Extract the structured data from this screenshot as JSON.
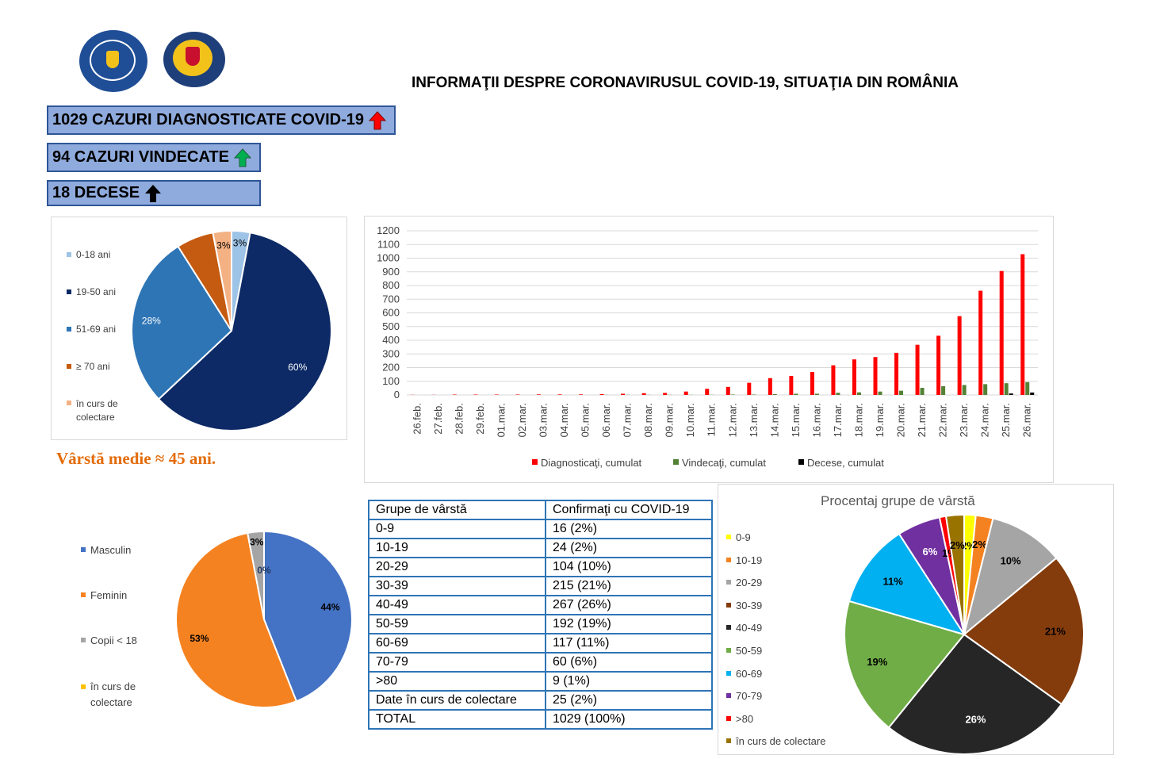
{
  "header": {
    "title": "INFORMAŢII DESPRE CORONAVIRUSUL COVID-19, SITUAŢIA DIN ROMÂNIA"
  },
  "stats": [
    {
      "text": "1029 CAZURI DIAGNOSTICATE COVID-19",
      "arrow_color": "#ff0000"
    },
    {
      "text": "94 CAZURI VINDECATE",
      "arrow_color": "#00b050"
    },
    {
      "text": "18 DECESE",
      "arrow_color": "#000000"
    }
  ],
  "average_age": "Vârstă medie ≈ 45 ani.",
  "table": {
    "headers": [
      "Grupe de vârstă",
      "Confirmaţi cu COVID-19"
    ],
    "rows": [
      [
        "0-9",
        "16 (2%)"
      ],
      [
        "10-19",
        "24 (2%)"
      ],
      [
        "20-29",
        "104 (10%)"
      ],
      [
        "30-39",
        "215 (21%)"
      ],
      [
        "40-49",
        "267 (26%)"
      ],
      [
        "50-59",
        "192 (19%)"
      ],
      [
        "60-69",
        "117 (11%)"
      ],
      [
        "70-79",
        "60 (6%)"
      ],
      [
        ">80",
        "9 (1%)"
      ],
      [
        "Date în curs de colectare",
        "25 (2%)"
      ],
      [
        "TOTAL",
        "1029 (100%)"
      ]
    ]
  },
  "chart_data": [
    {
      "type": "pie",
      "title": "",
      "labels": [
        "0-18 ani",
        "19-50 ani",
        "51-69 ani",
        "≥ 70 ani",
        "în curs de colectare"
      ],
      "values": [
        3,
        60,
        28,
        6,
        3
      ],
      "data_labels": [
        "3%",
        "60%",
        "28%",
        "6%",
        "3%"
      ],
      "colors": [
        "#9dc3e6",
        "#0d2a66",
        "#2e75b6",
        "#c55a11",
        "#f4b183"
      ],
      "label_colors": [
        "#000000",
        "#ffffff",
        "#ffffff",
        "#c55a11",
        "#000000"
      ],
      "legend_position": "left"
    },
    {
      "type": "bar",
      "title": "",
      "categories": [
        "26.feb.",
        "27.feb.",
        "28.feb.",
        "29.feb.",
        "01.mar.",
        "02.mar.",
        "03.mar.",
        "04.mar.",
        "05.mar.",
        "06.mar.",
        "07.mar.",
        "08.mar.",
        "09.mar.",
        "10.mar.",
        "11.mar.",
        "12.mar.",
        "13.mar.",
        "14.mar.",
        "15.mar.",
        "16.mar.",
        "17.mar.",
        "18.mar.",
        "19.mar.",
        "20.mar.",
        "21.mar.",
        "22.mar.",
        "23.mar.",
        "24.mar.",
        "25.mar.",
        "26.mar."
      ],
      "series": [
        {
          "name": "Diagnosticaţi, cumulat",
          "color": "#ff0000",
          "values": [
            1,
            1,
            3,
            3,
            3,
            3,
            4,
            4,
            4,
            6,
            9,
            13,
            15,
            25,
            45,
            59,
            89,
            123,
            139,
            168,
            217,
            260,
            277,
            308,
            367,
            433,
            576,
            762,
            906,
            1029
          ]
        },
        {
          "name": "Vindecaţi, cumulat",
          "color": "#548235",
          "values": [
            0,
            0,
            0,
            0,
            0,
            0,
            0,
            0,
            0,
            1,
            1,
            1,
            1,
            1,
            1,
            3,
            3,
            6,
            9,
            9,
            16,
            19,
            25,
            31,
            52,
            64,
            73,
            79,
            86,
            94
          ]
        },
        {
          "name": "Decese, cumulat",
          "color": "#000000",
          "values": [
            0,
            0,
            0,
            0,
            0,
            0,
            0,
            0,
            0,
            0,
            0,
            0,
            0,
            0,
            0,
            0,
            0,
            0,
            0,
            0,
            0,
            0,
            0,
            0,
            0,
            0,
            0,
            0,
            11,
            18
          ]
        }
      ],
      "y_ticks": [
        0,
        100,
        200,
        300,
        400,
        500,
        600,
        700,
        800,
        900,
        1000,
        1100,
        1200
      ],
      "ylim": [
        0,
        1200
      ],
      "grid": true,
      "legend_position": "bottom"
    },
    {
      "type": "pie",
      "title": "",
      "labels": [
        "Masculin",
        "Feminin",
        "Copii < 18",
        "în curs de colectare"
      ],
      "values": [
        44,
        53,
        3,
        0
      ],
      "data_labels": [
        "44%",
        "53%",
        "3%",
        "0%"
      ],
      "colors": [
        "#4472c4",
        "#f58220",
        "#a5a5a5",
        "#ffc000"
      ],
      "label_colors": [
        "#000000",
        "#000000",
        "#000000",
        "#1f3864"
      ],
      "legend_position": "left"
    },
    {
      "type": "pie",
      "title": "Procentaj grupe de vârstă",
      "labels": [
        "0-9",
        "10-19",
        "20-29",
        "30-39",
        "40-49",
        "50-59",
        "60-69",
        "70-79",
        ">80",
        "în curs de colectare"
      ],
      "values": [
        16,
        24,
        104,
        215,
        267,
        192,
        117,
        60,
        9,
        25
      ],
      "data_labels": [
        "2%",
        "2%",
        "10%",
        "21%",
        "26%",
        "19%",
        "11%",
        "6%",
        "1%",
        "2%"
      ],
      "colors": [
        "#ffff00",
        "#f58220",
        "#a5a5a5",
        "#843c0c",
        "#262626",
        "#70ad47",
        "#00b0f0",
        "#7030a0",
        "#ff0000",
        "#997300"
      ],
      "label_colors": [
        "#000000",
        "#000000",
        "#000000",
        "#000000",
        "#ffffff",
        "#000000",
        "#000000",
        "#ffffff",
        "#000000",
        "#000000"
      ],
      "legend_position": "left"
    }
  ]
}
